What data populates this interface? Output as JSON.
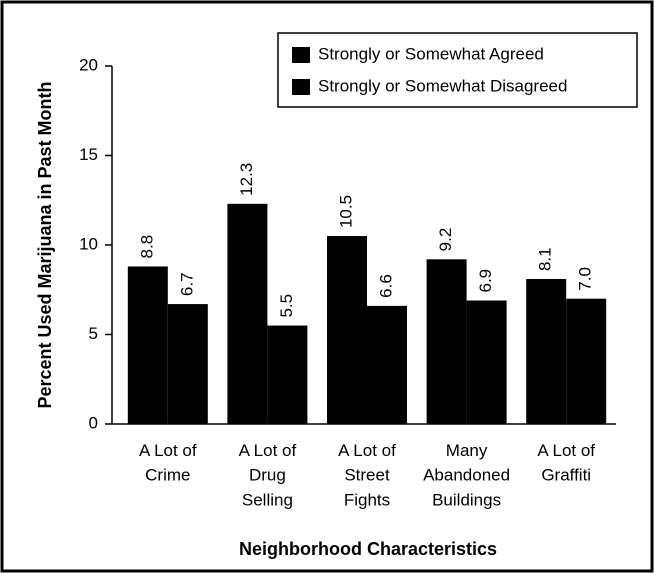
{
  "chart_data": {
    "type": "bar",
    "xlabel": "Neighborhood Characteristics",
    "ylabel": "Percent Used Marijuana in Past Month",
    "categories": [
      "A Lot of\nCrime",
      "A Lot of\nDrug\nSelling",
      "A Lot of\nStreet\nFights",
      "Many\nAbandoned\nBuildings",
      "A Lot of\nGraffiti"
    ],
    "series": [
      {
        "name": "Strongly or Somewhat Agreed",
        "color": "#000000",
        "values": [
          8.8,
          12.3,
          10.5,
          9.2,
          8.1
        ],
        "value_labels": [
          "8.8",
          "12.3",
          "10.5",
          "9.2",
          "8.1"
        ]
      },
      {
        "name": "Strongly or Somewhat Disagreed",
        "color": "#000000",
        "values": [
          6.7,
          5.5,
          6.6,
          6.9,
          7.0
        ],
        "value_labels": [
          "6.7",
          "5.5",
          "6.6",
          "6.9",
          "7.0"
        ]
      }
    ],
    "ylim": [
      0,
      20
    ],
    "yticks": [
      0,
      5,
      10,
      15,
      20
    ],
    "grid": false,
    "legend": "upper right"
  }
}
